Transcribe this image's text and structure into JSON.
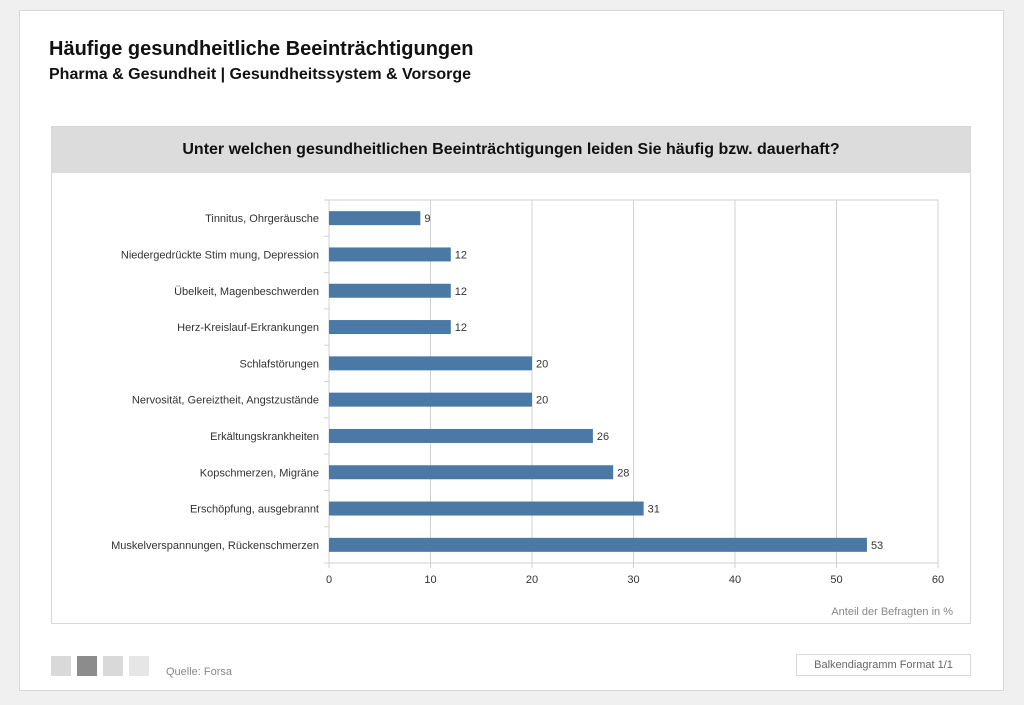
{
  "header": {
    "title": "Häufige gesundheitliche Beeinträchtigungen",
    "subtitle": "Pharma & Gesundheit | Gesundheitssystem & Vorsorge"
  },
  "footer": {
    "source": "Quelle: Forsa",
    "format_label": "Balkendiagramm Format 1/1",
    "page_squares": [
      "#d9d9d9",
      "#8c8c8c",
      "#d9d9d9",
      "#e6e6e6"
    ]
  },
  "colors": {
    "bar": "#4a79a5",
    "grid": "#d0d0d0",
    "band": "#dcdcdc"
  },
  "chart_data": {
    "type": "bar",
    "orientation": "horizontal",
    "title": "Unter welchen gesundheitlichen Beeinträchtigungen leiden Sie häufig bzw. dauerhaft?",
    "xlabel": "Anteil der Befragten in %",
    "ylabel": "",
    "xlim": [
      0,
      60
    ],
    "xticks": [
      0,
      10,
      20,
      30,
      40,
      50,
      60
    ],
    "grid": true,
    "categories": [
      "Tinnitus, Ohrgeräusche",
      "Niedergedrückte Stim mung, Depression",
      "Übelkeit, Magenbeschwerden",
      "Herz-Kreislauf-Erkrankungen",
      "Schlafstörungen",
      "Nervosität, Gereiztheit, Angstzustände",
      "Erkältungskrankheiten",
      "Kopschmerzen, Migräne",
      "Erschöpfung, ausgebrannt",
      "Muskelverspannungen, Rückenschmerzen"
    ],
    "values": [
      9,
      12,
      12,
      12,
      20,
      20,
      26,
      28,
      31,
      53
    ]
  }
}
